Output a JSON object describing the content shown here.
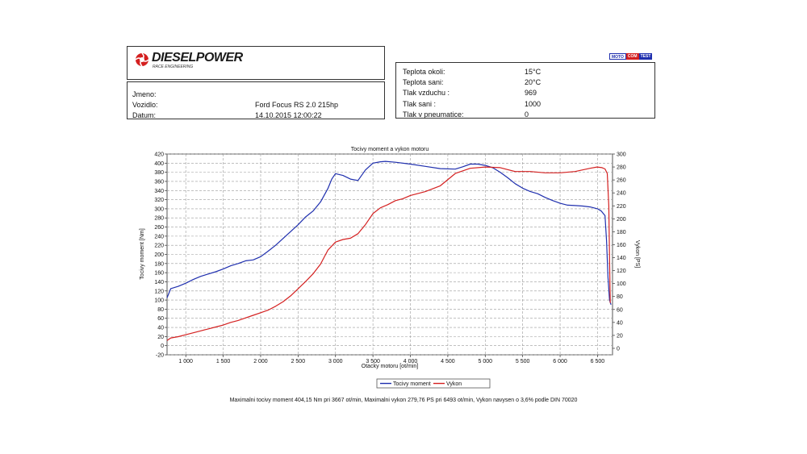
{
  "header": {
    "brand": "DIESELPOWER",
    "brand_sub": "RACE ENGINEERING",
    "badge": [
      "MOTO",
      "COM",
      "TEST"
    ]
  },
  "vehicle": {
    "rows": [
      {
        "label": "Jmeno:",
        "value": ""
      },
      {
        "label": "Vozidlo:",
        "value": "Ford Focus RS 2.0 215hp"
      },
      {
        "label": "Datum:",
        "value": "14.10.2015 12:00:22"
      }
    ]
  },
  "conditions": {
    "rows": [
      {
        "label": "Teplota okoli:",
        "value": "15°C"
      },
      {
        "label": "Teplota sani:",
        "value": "20°C"
      },
      {
        "label": "Tlak vzduchu :",
        "value": "969"
      },
      {
        "label": "Tlak sani :",
        "value": "1000"
      },
      {
        "label": "Tlak v pneumatice:",
        "value": "0"
      }
    ]
  },
  "footer_text": "Maximalni tocivy moment 404,15 Nm pri 3667 ot/min,  Maximalni vykon 279,76 PS pri 6493 ot/min,  Vykon navysen o 3,6% podle DIN 70020",
  "colors": {
    "torque": "#1f2fae",
    "power": "#d42020",
    "grid": "#9a9a9a"
  },
  "chart_data": {
    "type": "line",
    "title": "Tocivy moment a vykon motoru",
    "xlabel": "Otacky motoru [ot/min]",
    "ylabel": "Tocivy moment [Nm]",
    "y2label": "Vykon [PS]",
    "xlim": [
      750,
      6700
    ],
    "ylim": [
      -20,
      420
    ],
    "y2lim": [
      -10,
      300
    ],
    "x_ticks": [
      1000,
      1500,
      2000,
      2500,
      3000,
      3500,
      4000,
      4500,
      5000,
      5500,
      6000,
      6500
    ],
    "x_tick_labels": [
      "1 000",
      "1 500",
      "2 000",
      "2 500",
      "3 000",
      "3 500",
      "4 000",
      "4 500",
      "5 000",
      "5 500",
      "6 000",
      "6 500"
    ],
    "y_ticks": [
      -20,
      0,
      20,
      40,
      60,
      80,
      100,
      120,
      140,
      160,
      180,
      200,
      220,
      240,
      260,
      280,
      300,
      320,
      340,
      360,
      380,
      400,
      420
    ],
    "y2_ticks": [
      0,
      20,
      40,
      60,
      80,
      100,
      120,
      140,
      160,
      180,
      200,
      220,
      240,
      260,
      280,
      300
    ],
    "grid": true,
    "legend_position": "bottom-center",
    "series": [
      {
        "name": "Tocivy moment",
        "axis": "left",
        "x": [
          750,
          800,
          900,
          1000,
          1100,
          1200,
          1300,
          1400,
          1500,
          1600,
          1700,
          1800,
          1900,
          2000,
          2100,
          2200,
          2300,
          2400,
          2500,
          2600,
          2700,
          2800,
          2900,
          2950,
          3000,
          3100,
          3200,
          3300,
          3400,
          3500,
          3600,
          3667,
          3800,
          4000,
          4200,
          4400,
          4600,
          4700,
          4800,
          4900,
          5000,
          5100,
          5200,
          5300,
          5400,
          5500,
          5600,
          5700,
          5800,
          5900,
          6000,
          6100,
          6200,
          6300,
          6400,
          6500,
          6550,
          6600,
          6620,
          6640,
          6660,
          6680
        ],
        "y": [
          105,
          125,
          130,
          137,
          145,
          152,
          157,
          162,
          168,
          175,
          180,
          186,
          188,
          195,
          207,
          220,
          235,
          250,
          265,
          282,
          295,
          315,
          345,
          365,
          377,
          373,
          365,
          362,
          385,
          400,
          403,
          404,
          402,
          398,
          393,
          388,
          387,
          392,
          398,
          398,
          395,
          390,
          380,
          368,
          355,
          345,
          338,
          333,
          325,
          318,
          312,
          308,
          307,
          306,
          304,
          300,
          295,
          285,
          230,
          150,
          100,
          90
        ]
      },
      {
        "name": "Vykon",
        "axis": "right",
        "x": [
          750,
          800,
          900,
          1000,
          1100,
          1200,
          1300,
          1400,
          1500,
          1600,
          1700,
          1800,
          1900,
          2000,
          2100,
          2200,
          2300,
          2400,
          2500,
          2600,
          2700,
          2800,
          2900,
          3000,
          3100,
          3200,
          3300,
          3400,
          3500,
          3600,
          3700,
          3800,
          3900,
          4000,
          4200,
          4400,
          4600,
          4800,
          5000,
          5200,
          5400,
          5600,
          5800,
          6000,
          6200,
          6400,
          6493,
          6560,
          6600,
          6630,
          6650,
          6660,
          6670
        ],
        "y": [
          12,
          16,
          18,
          21,
          24,
          27,
          30,
          33,
          36,
          40,
          43,
          47,
          51,
          55,
          59,
          65,
          72,
          81,
          92,
          103,
          115,
          130,
          152,
          164,
          168,
          170,
          177,
          191,
          208,
          217,
          222,
          228,
          231,
          236,
          242,
          251,
          270,
          278,
          280,
          279,
          273,
          273,
          271,
          271,
          273,
          278,
          280,
          279,
          277,
          270,
          220,
          140,
          70
        ]
      }
    ]
  }
}
